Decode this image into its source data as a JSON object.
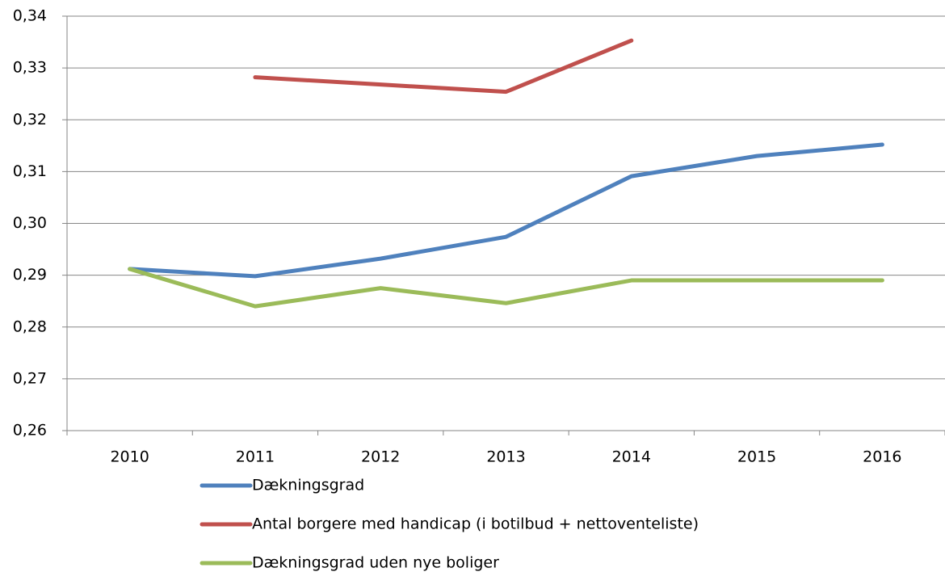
{
  "chart_data": {
    "type": "line",
    "categories": [
      "2010",
      "2011",
      "2012",
      "2013",
      "2014",
      "2015",
      "2016"
    ],
    "series": [
      {
        "name": "Dækningsgrad",
        "color": "#4f81bd",
        "values": [
          0.2912,
          0.2898,
          0.2932,
          0.2974,
          0.3091,
          0.313,
          0.3152
        ]
      },
      {
        "name": "Antal borgere med handicap (i botilbud + nettoventeliste)",
        "color": "#c0504d",
        "values": [
          null,
          0.3282,
          0.3268,
          0.3254,
          0.3353,
          null,
          null
        ]
      },
      {
        "name": "Dækningsgrad uden nye boliger",
        "color": "#9bbb59",
        "values": [
          0.2912,
          0.284,
          0.2875,
          0.2846,
          0.289,
          0.289,
          0.289
        ]
      }
    ],
    "ylim": [
      0.26,
      0.34
    ],
    "yticks": [
      {
        "value": 0.26,
        "label": "0,26"
      },
      {
        "value": 0.27,
        "label": "0,27"
      },
      {
        "value": 0.28,
        "label": "0,28"
      },
      {
        "value": 0.29,
        "label": "0,29"
      },
      {
        "value": 0.3,
        "label": "0,30"
      },
      {
        "value": 0.31,
        "label": "0,31"
      },
      {
        "value": 0.32,
        "label": "0,32"
      },
      {
        "value": 0.33,
        "label": "0,33"
      },
      {
        "value": 0.34,
        "label": "0,34"
      }
    ],
    "grid": true,
    "legend": "bottom"
  }
}
